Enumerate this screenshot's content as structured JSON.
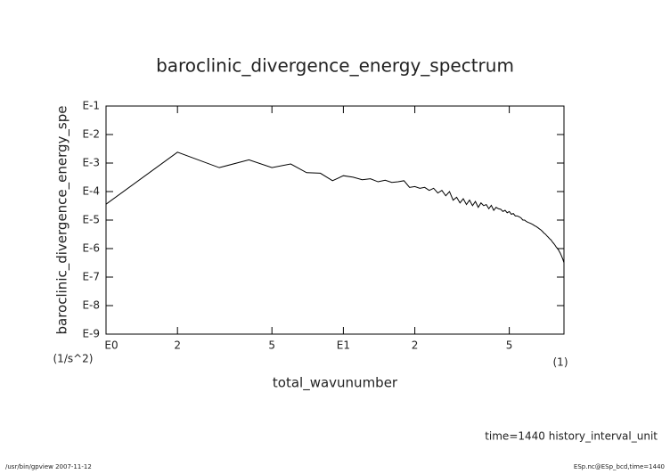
{
  "chart_data": {
    "type": "line",
    "title": "baroclinic_divergence_energy_spectrum",
    "y_label": "baroclinic_divergence_energy_spe",
    "y_unit": "(1/s^2)",
    "x_label": "total_wavunumber",
    "x_unit": "(1)",
    "annotation": "time=1440 history_interval_unit",
    "footer_left": "/usr/bin/gpview  2007-11-12",
    "footer_right": "ESp.nc@ESp_bcd,time=1440",
    "x_log": true,
    "y_log": true,
    "xlim": [
      1,
      85
    ],
    "ylim": [
      1e-09,
      0.1
    ],
    "xticks": [
      {
        "value": 1,
        "label": "E0"
      },
      2,
      5,
      {
        "value": 10,
        "label": "E1"
      },
      {
        "value": 20,
        "label": "2"
      },
      {
        "value": 50,
        "label": "5"
      }
    ],
    "yticks": [
      {
        "value": 1e-09,
        "label": "E-9"
      },
      {
        "value": 1e-08,
        "label": "E-8"
      },
      {
        "value": 1e-07,
        "label": "E-7"
      },
      {
        "value": 1e-06,
        "label": "E-6"
      },
      {
        "value": 1e-05,
        "label": "E-5"
      },
      {
        "value": 0.0001,
        "label": "E-4"
      },
      {
        "value": 0.001,
        "label": "E-3"
      },
      {
        "value": 0.01,
        "label": "E-2"
      },
      {
        "value": 0.1,
        "label": "E-1"
      }
    ],
    "color": "#000000",
    "x": [
      1,
      2,
      3,
      4,
      5,
      6,
      7,
      8,
      9,
      10,
      11,
      12,
      13,
      14,
      15,
      16,
      17,
      18,
      19,
      20,
      21,
      22,
      23,
      24,
      25,
      26,
      27,
      28,
      29,
      30,
      31,
      32,
      33,
      34,
      35,
      36,
      37,
      38,
      39,
      40,
      41,
      42,
      43,
      44,
      45,
      46,
      47,
      48,
      49,
      50,
      51,
      52,
      53,
      54,
      55,
      56,
      57,
      58,
      59,
      60,
      61,
      62,
      63,
      64,
      65,
      66,
      67,
      68,
      69,
      70,
      71,
      72,
      73,
      74,
      75,
      76,
      77,
      78,
      79,
      80,
      81,
      82,
      83,
      84,
      85
    ],
    "values": [
      3.6e-05,
      0.0024,
      0.00069,
      0.0013,
      0.00069,
      0.00093,
      0.00046,
      0.00044,
      0.00024,
      0.00036,
      0.00032,
      0.00026,
      0.00028,
      0.00022,
      0.00025,
      0.00021,
      0.00022,
      0.00024,
      0.00014,
      0.00015,
      0.00013,
      0.00014,
      0.00011,
      0.00013,
      8.9e-05,
      0.00011,
      7.1e-05,
      0.0001,
      5e-05,
      6.3e-05,
      4e-05,
      5.6e-05,
      3.5e-05,
      5e-05,
      3.2e-05,
      4.5e-05,
      2.8e-05,
      4e-05,
      3.2e-05,
      3.5e-05,
      2.5e-05,
      3.3e-05,
      2.2e-05,
      2.8e-05,
      2.5e-05,
      2.4e-05,
      2e-05,
      2.2e-05,
      1.8e-05,
      2e-05,
      1.6e-05,
      1.7e-05,
      1.4e-05,
      1.4e-05,
      1.3e-05,
      1.2e-05,
      1e-05,
      1e-05,
      8.9e-06,
      8.3e-06,
      7.9e-06,
      7.4e-06,
      6.9e-06,
      6.3e-06,
      5.9e-06,
      5.4e-06,
      4.9e-06,
      4.5e-06,
      4e-06,
      3.5e-06,
      3.2e-06,
      2.8e-06,
      2.5e-06,
      2.2e-06,
      2e-06,
      1.7e-06,
      1.5e-06,
      1.3e-06,
      1.1e-06,
      1e-06,
      8.3e-07,
      6.9e-07,
      5.5e-07,
      4.3e-07,
      3.2e-07
    ]
  }
}
